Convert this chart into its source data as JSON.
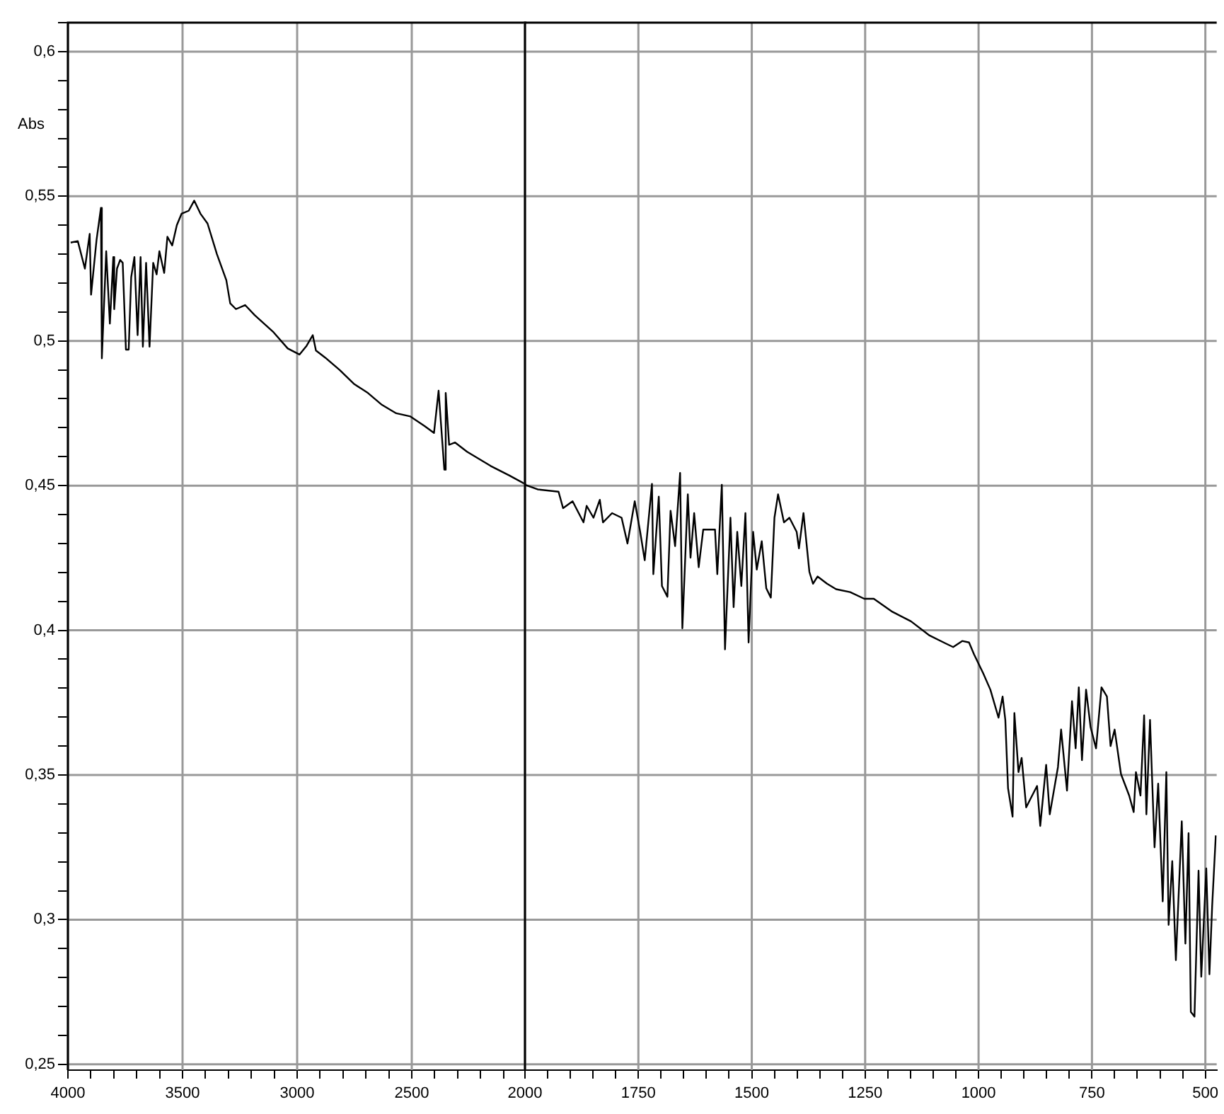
{
  "chart_data": [
    {
      "type": "line",
      "ylabel": "Abs",
      "color": "#000000",
      "marker": "none",
      "line_style": "solid",
      "grid": true,
      "xlim": [
        4000,
        2000
      ],
      "ylim": [
        0.248,
        0.61
      ],
      "xticks": [
        4000,
        {
          "value": 3900,
          "label": null
        },
        {
          "value": 3800,
          "label": null
        },
        {
          "value": 3700,
          "label": null
        },
        {
          "value": 3600,
          "label": null
        },
        3500,
        {
          "value": 3400,
          "label": null
        },
        {
          "value": 3300,
          "label": null
        },
        {
          "value": 3200,
          "label": null
        },
        {
          "value": 3100,
          "label": null
        },
        3000,
        {
          "value": 2900,
          "label": null
        },
        {
          "value": 2800,
          "label": null
        },
        {
          "value": 2700,
          "label": null
        },
        {
          "value": 2600,
          "label": null
        },
        2500,
        {
          "value": 2400,
          "label": null
        },
        {
          "value": 2300,
          "label": null
        },
        {
          "value": 2200,
          "label": null
        },
        {
          "value": 2100,
          "label": null
        }
      ],
      "yticks": [
        {
          "value": 0.25,
          "label": "0,25"
        },
        {
          "value": 0.26,
          "label": null
        },
        {
          "value": 0.27,
          "label": null
        },
        {
          "value": 0.28,
          "label": null
        },
        {
          "value": 0.29,
          "label": null
        },
        {
          "value": 0.3,
          "label": "0,3"
        },
        {
          "value": 0.31,
          "label": null
        },
        {
          "value": 0.32,
          "label": null
        },
        {
          "value": 0.33,
          "label": null
        },
        {
          "value": 0.34,
          "label": null
        },
        {
          "value": 0.35,
          "label": "0,35"
        },
        {
          "value": 0.36,
          "label": null
        },
        {
          "value": 0.37,
          "label": null
        },
        {
          "value": 0.38,
          "label": null
        },
        {
          "value": 0.39,
          "label": null
        },
        {
          "value": 0.4,
          "label": "0,4"
        },
        {
          "value": 0.41,
          "label": null
        },
        {
          "value": 0.42,
          "label": null
        },
        {
          "value": 0.43,
          "label": null
        },
        {
          "value": 0.44,
          "label": null
        },
        {
          "value": 0.45,
          "label": "0,45"
        },
        {
          "value": 0.46,
          "label": null
        },
        {
          "value": 0.47,
          "label": null
        },
        {
          "value": 0.48,
          "label": null
        },
        {
          "value": 0.49,
          "label": null
        },
        {
          "value": 0.5,
          "label": "0,5"
        },
        {
          "value": 0.51,
          "label": null
        },
        {
          "value": 0.52,
          "label": null
        },
        {
          "value": 0.53,
          "label": null
        },
        {
          "value": 0.54,
          "label": null
        },
        {
          "value": 0.55,
          "label": "0,55"
        },
        {
          "value": 0.56,
          "label": null
        },
        {
          "value": 0.57,
          "label": null
        },
        {
          "value": 0.58,
          "label": null
        },
        {
          "value": 0.59,
          "label": null
        },
        {
          "value": 0.6,
          "label": "0,6"
        },
        {
          "value": 0.61,
          "label": null
        }
      ],
      "x": [
        3988,
        3957,
        3926,
        3905,
        3899,
        3875,
        3856,
        3852,
        3833,
        3817,
        3802,
        3798,
        3786,
        3772,
        3761,
        3747,
        3735,
        3724,
        3710,
        3696,
        3683,
        3673,
        3659,
        3644,
        3628,
        3613,
        3601,
        3580,
        3566,
        3545,
        3525,
        3504,
        3473,
        3449,
        3422,
        3391,
        3350,
        3309,
        3292,
        3267,
        3227,
        3185,
        3103,
        3041,
        2990,
        2959,
        2932,
        2918,
        2877,
        2815,
        2753,
        2691,
        2630,
        2568,
        2506,
        2444,
        2403,
        2383,
        2358,
        2352,
        2337,
        2311,
        2259,
        2156,
        2074,
        2000
      ],
      "values": [
        0.534,
        0.5345,
        0.525,
        0.537,
        0.516,
        0.535,
        0.546,
        0.494,
        0.531,
        0.506,
        0.529,
        0.511,
        0.525,
        0.528,
        0.527,
        0.497,
        0.497,
        0.522,
        0.529,
        0.502,
        0.529,
        0.498,
        0.527,
        0.498,
        0.527,
        0.523,
        0.531,
        0.5235,
        0.536,
        0.533,
        0.54,
        0.544,
        0.545,
        0.5485,
        0.544,
        0.5406,
        0.53,
        0.521,
        0.513,
        0.511,
        0.5124,
        0.5089,
        0.503,
        0.4974,
        0.4953,
        0.4983,
        0.502,
        0.4967,
        0.4942,
        0.49,
        0.4852,
        0.482,
        0.4779,
        0.475,
        0.4739,
        0.4706,
        0.4682,
        0.4828,
        0.4555,
        0.482,
        0.4641,
        0.4649,
        0.4617,
        0.4568,
        0.4535,
        0.4503
      ]
    },
    {
      "type": "line",
      "color": "#000000",
      "marker": "none",
      "line_style": "solid",
      "grid": true,
      "tick_labels": "x",
      "xlim": [
        2000,
        475
      ],
      "ylim": [
        0.248,
        0.61
      ],
      "xticks": [
        2000,
        {
          "value": 1950,
          "label": null
        },
        {
          "value": 1900,
          "label": null
        },
        {
          "value": 1850,
          "label": null
        },
        {
          "value": 1800,
          "label": null
        },
        1750,
        {
          "value": 1700,
          "label": null
        },
        {
          "value": 1650,
          "label": null
        },
        {
          "value": 1600,
          "label": null
        },
        {
          "value": 1550,
          "label": null
        },
        1500,
        {
          "value": 1450,
          "label": null
        },
        {
          "value": 1400,
          "label": null
        },
        {
          "value": 1350,
          "label": null
        },
        {
          "value": 1300,
          "label": null
        },
        1250,
        {
          "value": 1200,
          "label": null
        },
        {
          "value": 1150,
          "label": null
        },
        {
          "value": 1100,
          "label": null
        },
        {
          "value": 1050,
          "label": null
        },
        1000,
        {
          "value": 950,
          "label": null
        },
        {
          "value": 900,
          "label": null
        },
        {
          "value": 850,
          "label": null
        },
        {
          "value": 800,
          "label": null
        },
        750,
        {
          "value": 700,
          "label": null
        },
        {
          "value": 650,
          "label": null
        },
        {
          "value": 600,
          "label": null
        },
        {
          "value": 550,
          "label": null
        },
        500
      ],
      "yticks": [
        0.25,
        0.3,
        0.35,
        0.4,
        0.45,
        0.5,
        0.55,
        0.6
      ],
      "x": [
        2000,
        1972,
        1926,
        1916,
        1895,
        1871,
        1864,
        1849,
        1835,
        1828,
        1808,
        1787,
        1774,
        1758,
        1746,
        1736,
        1720,
        1717,
        1705,
        1698,
        1686,
        1679,
        1669,
        1658,
        1653,
        1641,
        1635,
        1627,
        1617,
        1607,
        1581,
        1576,
        1566,
        1559,
        1547,
        1540,
        1532,
        1523,
        1514,
        1507,
        1497,
        1489,
        1478,
        1468,
        1458,
        1450,
        1442,
        1429,
        1417,
        1401,
        1396,
        1386,
        1373,
        1365,
        1355,
        1334,
        1314,
        1283,
        1252,
        1231,
        1190,
        1149,
        1108,
        1077,
        1056,
        1036,
        1021,
        1010,
        990,
        974,
        956,
        947,
        941,
        935,
        925,
        921,
        912,
        905,
        895,
        887,
        871,
        864,
        851,
        843,
        825,
        818,
        805,
        794,
        786,
        779,
        772,
        763,
        753,
        741,
        729,
        717,
        709,
        700,
        686,
        676,
        668,
        658,
        653,
        643,
        635,
        630,
        622,
        612,
        604,
        594,
        586,
        581,
        573,
        565,
        552,
        544,
        537,
        532,
        524,
        515,
        509,
        498,
        491,
        485,
        477
      ],
      "values": [
        0.4503,
        0.4487,
        0.4479,
        0.4422,
        0.4446,
        0.4373,
        0.443,
        0.4389,
        0.4451,
        0.4373,
        0.4405,
        0.4389,
        0.43,
        0.4446,
        0.434,
        0.4242,
        0.4506,
        0.4194,
        0.4462,
        0.4153,
        0.4116,
        0.4413,
        0.4291,
        0.4544,
        0.4007,
        0.447,
        0.4251,
        0.4405,
        0.4218,
        0.4348,
        0.4348,
        0.4194,
        0.4503,
        0.3934,
        0.4389,
        0.408,
        0.434,
        0.4153,
        0.4405,
        0.3958,
        0.434,
        0.421,
        0.4308,
        0.4145,
        0.4113,
        0.4389,
        0.447,
        0.4373,
        0.4389,
        0.434,
        0.4283,
        0.4405,
        0.4202,
        0.4161,
        0.4186,
        0.4161,
        0.4142,
        0.4132,
        0.4109,
        0.4109,
        0.4064,
        0.4031,
        0.3982,
        0.3958,
        0.3942,
        0.3963,
        0.3958,
        0.3917,
        0.3852,
        0.3795,
        0.3698,
        0.3771,
        0.369,
        0.3454,
        0.3356,
        0.3714,
        0.351,
        0.3559,
        0.3388,
        0.3413,
        0.3462,
        0.3324,
        0.3535,
        0.3364,
        0.3527,
        0.3657,
        0.3446,
        0.3755,
        0.3592,
        0.3803,
        0.3551,
        0.3795,
        0.3665,
        0.3592,
        0.3803,
        0.3771,
        0.36,
        0.3657,
        0.3503,
        0.3462,
        0.3429,
        0.3372,
        0.351,
        0.3429,
        0.3706,
        0.3364,
        0.369,
        0.325,
        0.347,
        0.3063,
        0.351,
        0.2982,
        0.3202,
        0.286,
        0.334,
        0.2917,
        0.3299,
        0.2681,
        0.2665,
        0.3169,
        0.2803,
        0.3177,
        0.2811,
        0.3047,
        0.3291
      ]
    }
  ]
}
